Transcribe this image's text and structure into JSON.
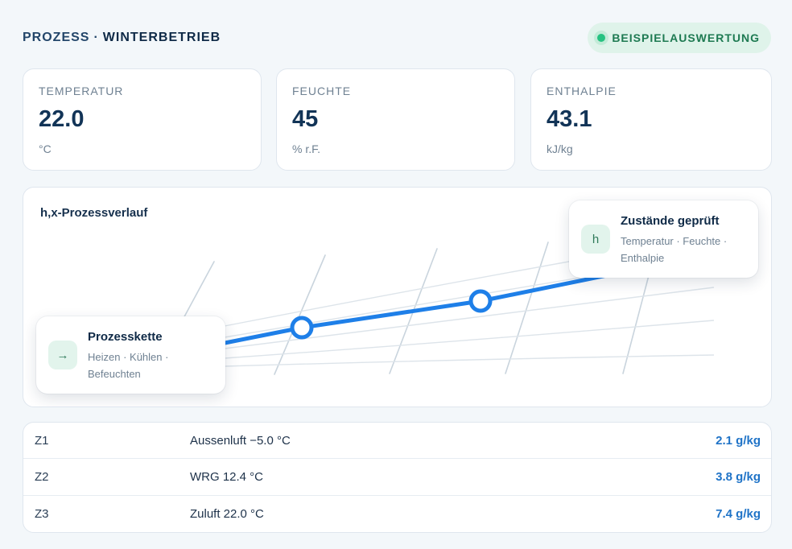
{
  "header": {
    "title_prefix": "PROZESS",
    "title_separator": "·",
    "title_main": "WINTERBETRIEB",
    "badge_label": "BEISPIELAUSWERTUNG"
  },
  "metrics": [
    {
      "label": "TEMPERATUR",
      "value": "22.0",
      "unit": "°C"
    },
    {
      "label": "FEUCHTE",
      "value": "45",
      "unit": "% r.F."
    },
    {
      "label": "ENTHALPIE",
      "value": "43.1",
      "unit": "kJ/kg"
    }
  ],
  "chart": {
    "title": "h,x-Prozessverlauf",
    "line_color": "#1e7fe8",
    "grid_color": "#c9d4dd"
  },
  "popups": {
    "process_chain": {
      "icon": "arrow-right-icon",
      "icon_glyph": "→",
      "title": "Prozesskette",
      "desc": "Heizen · Kühlen · Befeuchten"
    },
    "states_checked": {
      "icon": "enthalpy-h-icon",
      "icon_glyph": "h",
      "title": "Zustände geprüft",
      "desc": "Temperatur · Feuchte · Enthalpie"
    }
  },
  "states": [
    {
      "id": "Z1",
      "desc": "Aussenluft −5.0 °C",
      "value": "2.1 g/kg"
    },
    {
      "id": "Z2",
      "desc": "WRG 12.4 °C",
      "value": "3.8 g/kg"
    },
    {
      "id": "Z3",
      "desc": "Zuluft 22.0 °C",
      "value": "7.4 g/kg"
    }
  ]
}
